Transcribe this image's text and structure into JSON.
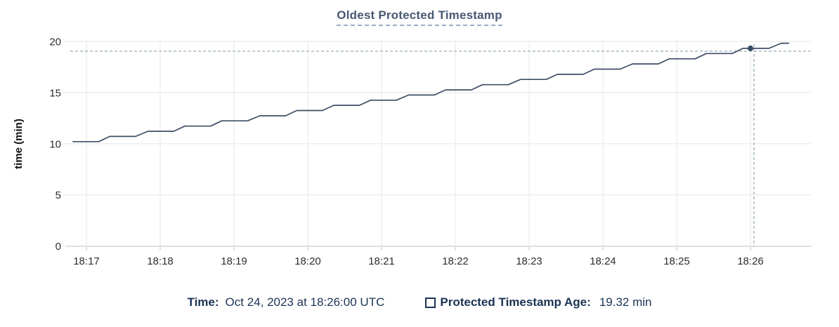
{
  "title": "Oldest Protected Timestamp",
  "footer": {
    "time_label": "Time:",
    "time_value": "Oct 24, 2023 at 18:26:00 UTC",
    "series_label": "Protected Timestamp Age:",
    "series_value": "19.32 min"
  },
  "colors": {
    "series_line": "#3f4d66",
    "hover_dot": "#394a63",
    "crosshair": "#9fb4bd",
    "title": "#475872",
    "legend_text": "#1b3354",
    "gridline": "#ededed",
    "vertical_gridline": "#f0f0f0",
    "axis_line": "#dcdcdc",
    "tick_stub": "#cfcfcf",
    "tick_label": "#2d2d2d"
  },
  "chart_data": {
    "type": "line",
    "title": "Oldest Protected Timestamp",
    "xlabel": "",
    "ylabel": "time (min)",
    "ylim": [
      0,
      20
    ],
    "y_ticks": [
      0,
      5,
      10,
      15,
      20
    ],
    "x_ticks": [
      "18:17",
      "18:18",
      "18:19",
      "18:20",
      "18:21",
      "18:22",
      "18:23",
      "18:24",
      "18:25",
      "18:26"
    ],
    "grid": "both",
    "legend_position": "bottom",
    "series": [
      {
        "name": "Protected Timestamp Age",
        "unit": "min",
        "points": [
          [
            "18:16:49",
            10.2
          ],
          [
            "18:17:10",
            10.2
          ],
          [
            "18:17:19",
            10.71
          ],
          [
            "18:17:40",
            10.71
          ],
          [
            "18:17:50",
            11.21
          ],
          [
            "18:18:11",
            11.21
          ],
          [
            "18:18:20",
            11.72
          ],
          [
            "18:18:41",
            11.72
          ],
          [
            "18:18:50",
            12.23
          ],
          [
            "18:19:11",
            12.23
          ],
          [
            "18:19:21",
            12.73
          ],
          [
            "18:19:42",
            12.73
          ],
          [
            "18:19:51",
            13.24
          ],
          [
            "18:20:12",
            13.24
          ],
          [
            "18:20:21",
            13.75
          ],
          [
            "18:20:42",
            13.75
          ],
          [
            "18:20:51",
            14.25
          ],
          [
            "18:21:12",
            14.25
          ],
          [
            "18:21:22",
            14.76
          ],
          [
            "18:21:43",
            14.76
          ],
          [
            "18:21:52",
            15.26
          ],
          [
            "18:22:13",
            15.26
          ],
          [
            "18:22:22",
            15.77
          ],
          [
            "18:22:43",
            15.77
          ],
          [
            "18:22:53",
            16.28
          ],
          [
            "18:23:14",
            16.28
          ],
          [
            "18:23:23",
            16.78
          ],
          [
            "18:23:44",
            16.78
          ],
          [
            "18:23:53",
            17.29
          ],
          [
            "18:24:14",
            17.29
          ],
          [
            "18:24:24",
            17.8
          ],
          [
            "18:24:45",
            17.8
          ],
          [
            "18:24:54",
            18.3
          ],
          [
            "18:25:15",
            18.3
          ],
          [
            "18:25:24",
            18.81
          ],
          [
            "18:25:45",
            18.81
          ],
          [
            "18:25:54",
            19.32
          ],
          [
            "18:26:15",
            19.32
          ],
          [
            "18:26:25",
            19.82
          ],
          [
            "18:26:31",
            19.82
          ]
        ]
      }
    ],
    "hover_point": {
      "x": "18:26:00",
      "y": 19.32
    }
  }
}
